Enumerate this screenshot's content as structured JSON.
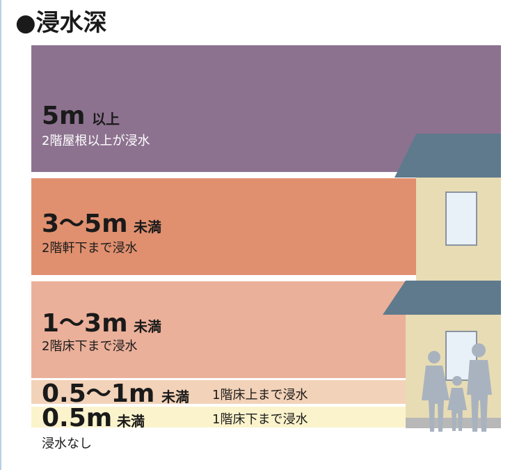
{
  "header": {
    "title": "●浸水深"
  },
  "bands": [
    {
      "depth": "5m",
      "qualifier": "以上",
      "description": "2階屋根以上が浸水"
    },
    {
      "depth": "3〜5m",
      "qualifier": "未満",
      "description": "2階軒下まで浸水"
    },
    {
      "depth": "1〜3m",
      "qualifier": "未満",
      "description": "2階床下まで浸水"
    },
    {
      "depth": "0.5〜1m",
      "qualifier": "未満",
      "description": "1階床上まで浸水"
    },
    {
      "depth": "0.5m",
      "qualifier": "未満",
      "description": "1階床下まで浸水"
    }
  ],
  "footer": {
    "none": "浸水なし"
  }
}
